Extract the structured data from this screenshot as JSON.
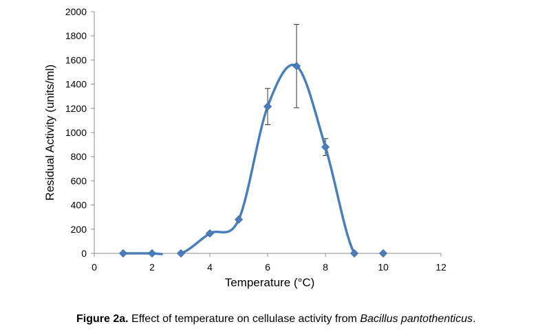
{
  "chart_data": {
    "type": "scatter",
    "subtype": "smooth-line-with-markers",
    "xlabel": "Temperature (°C)",
    "ylabel": "Residual Activity (units/ml)",
    "xlim": [
      0,
      12
    ],
    "ylim": [
      0,
      2000
    ],
    "xticks": [
      "0",
      "2",
      "4",
      "6",
      "8",
      "10",
      "12"
    ],
    "yticks": [
      "0",
      "200",
      "400",
      "600",
      "800",
      "1000",
      "1200",
      "1400",
      "1600",
      "1800",
      "2000"
    ],
    "grid": false,
    "legend": "none",
    "color": "#4a7ebb",
    "series": [
      {
        "x": [
          1,
          2,
          3,
          4,
          5,
          6,
          7,
          8,
          9,
          10
        ],
        "y": [
          0,
          0,
          0,
          165,
          280,
          1215,
          1550,
          880,
          0,
          0
        ],
        "error": [
          null,
          null,
          null,
          null,
          null,
          150,
          345,
          70,
          null,
          null
        ]
      }
    ]
  },
  "caption": {
    "label": "Figure 2a.",
    "text_before": " Effect of temperature on cellulase activity from ",
    "species": "Bacillus pantothenticus",
    "text_after": "."
  }
}
